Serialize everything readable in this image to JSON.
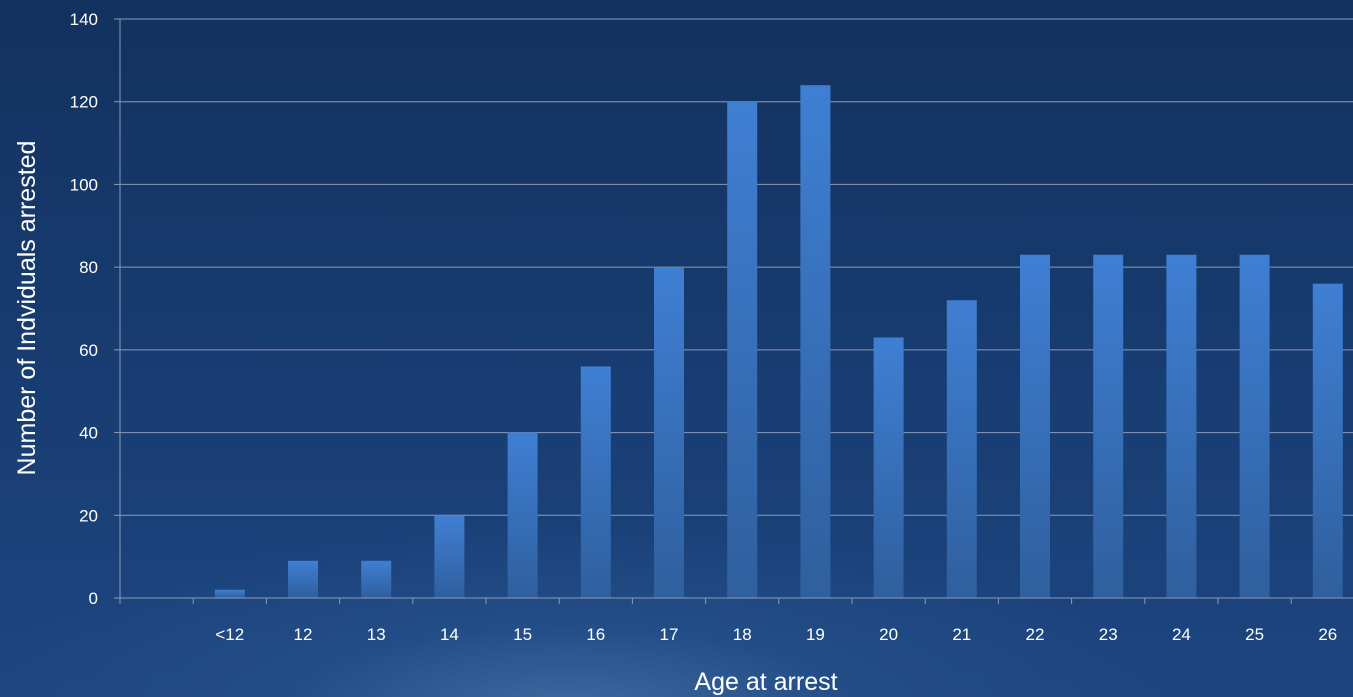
{
  "chart_data": {
    "type": "bar",
    "title": "",
    "xlabel": "Age at arrest",
    "ylabel": "Number of Indviduals arrested",
    "categories": [
      "",
      "<12",
      "12",
      "13",
      "14",
      "15",
      "16",
      "17",
      "18",
      "19",
      "20",
      "21",
      "22",
      "23",
      "24",
      "25",
      "26"
    ],
    "values": [
      0,
      2,
      9,
      9,
      20,
      40,
      56,
      80,
      120,
      124,
      63,
      72,
      83,
      83,
      83,
      83,
      76
    ],
    "ylim": [
      0,
      140
    ],
    "yticks": [
      0,
      20,
      40,
      60,
      80,
      100,
      120,
      140
    ],
    "grid": true,
    "legend": "none",
    "colors": {
      "bar_top": "#3f7fd3",
      "bar_bottom": "#2f5f9e",
      "gridline": "#8a9bb8",
      "axis": "#8a9bb8",
      "text": "#ffffff"
    }
  }
}
